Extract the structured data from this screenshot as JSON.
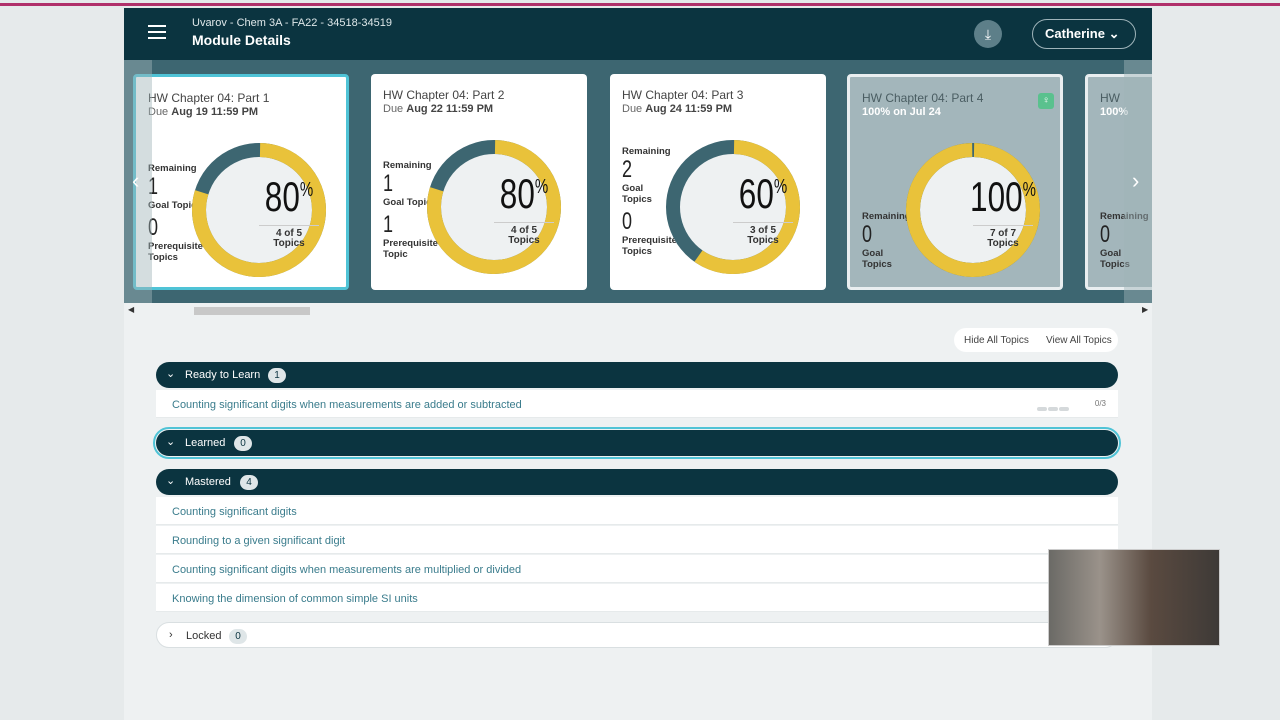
{
  "header": {
    "course": "Uvarov - Chem 3A - FA22 - 34518-34519",
    "title": "Module Details",
    "user": "Catherine",
    "download_icon": "download-icon"
  },
  "cards": [
    {
      "title": "HW Chapter 04: Part 1",
      "due_prefix": "Due",
      "due": "Aug 19 11:59 PM",
      "remaining": "1",
      "remaining_label": "Remaining",
      "goal_label": "Goal Topic",
      "prereq": "0",
      "prereq_label": "Prerequisite Topics",
      "percent": 80,
      "pct_text": "80",
      "of_text": "4 of 5",
      "topics": "Topics"
    },
    {
      "title": "HW Chapter 04: Part 2",
      "due_prefix": "Due",
      "due": "Aug 22 11:59 PM",
      "remaining": "1",
      "remaining_label": "Remaining",
      "goal_label": "Goal Topic",
      "prereq": "1",
      "prereq_label": "Prerequisite Topic",
      "percent": 80,
      "pct_text": "80",
      "of_text": "4 of 5",
      "topics": "Topics"
    },
    {
      "title": "HW Chapter 04: Part 3",
      "due_prefix": "Due",
      "due": "Aug 24 11:59 PM",
      "remaining": "2",
      "remaining_label": "Remaining",
      "goal_label": "Goal Topics",
      "prereq": "0",
      "prereq_label": "Prerequisite Topics",
      "percent": 60,
      "pct_text": "60",
      "of_text": "3 of 5",
      "topics": "Topics"
    },
    {
      "title": "HW Chapter 04: Part 4",
      "score": "100% on Jul 24",
      "remaining": "0",
      "remaining_label": "Remaining",
      "goal_label": "Goal Topics",
      "percent": 100,
      "pct_text": "100",
      "of_text": "7 of 7",
      "topics": "Topics"
    },
    {
      "title": "HW",
      "score": "100%",
      "remaining": "0",
      "remaining_label": "Remaining",
      "goal_label": "Goal Topics"
    }
  ],
  "colors": {
    "complete": "#e9c23a",
    "remaining": "#3d6671",
    "header": "#0b3440",
    "accent": "#4fc3d6"
  },
  "topic_buttons": {
    "hide": "Hide All Topics",
    "view": "View All Topics"
  },
  "sections": {
    "ready": {
      "label": "Ready to Learn",
      "count": "1",
      "items": [
        {
          "name": "Counting significant digits when measurements are added or subtracted",
          "progress": "0/3"
        }
      ]
    },
    "learned": {
      "label": "Learned",
      "count": "0"
    },
    "mastered": {
      "label": "Mastered",
      "count": "4",
      "items": [
        "Counting significant digits",
        "Rounding to a given significant digit",
        "Counting significant digits when measurements are multiplied or divided",
        "Knowing the dimension of common simple SI units"
      ]
    },
    "locked": {
      "label": "Locked",
      "count": "0"
    }
  }
}
